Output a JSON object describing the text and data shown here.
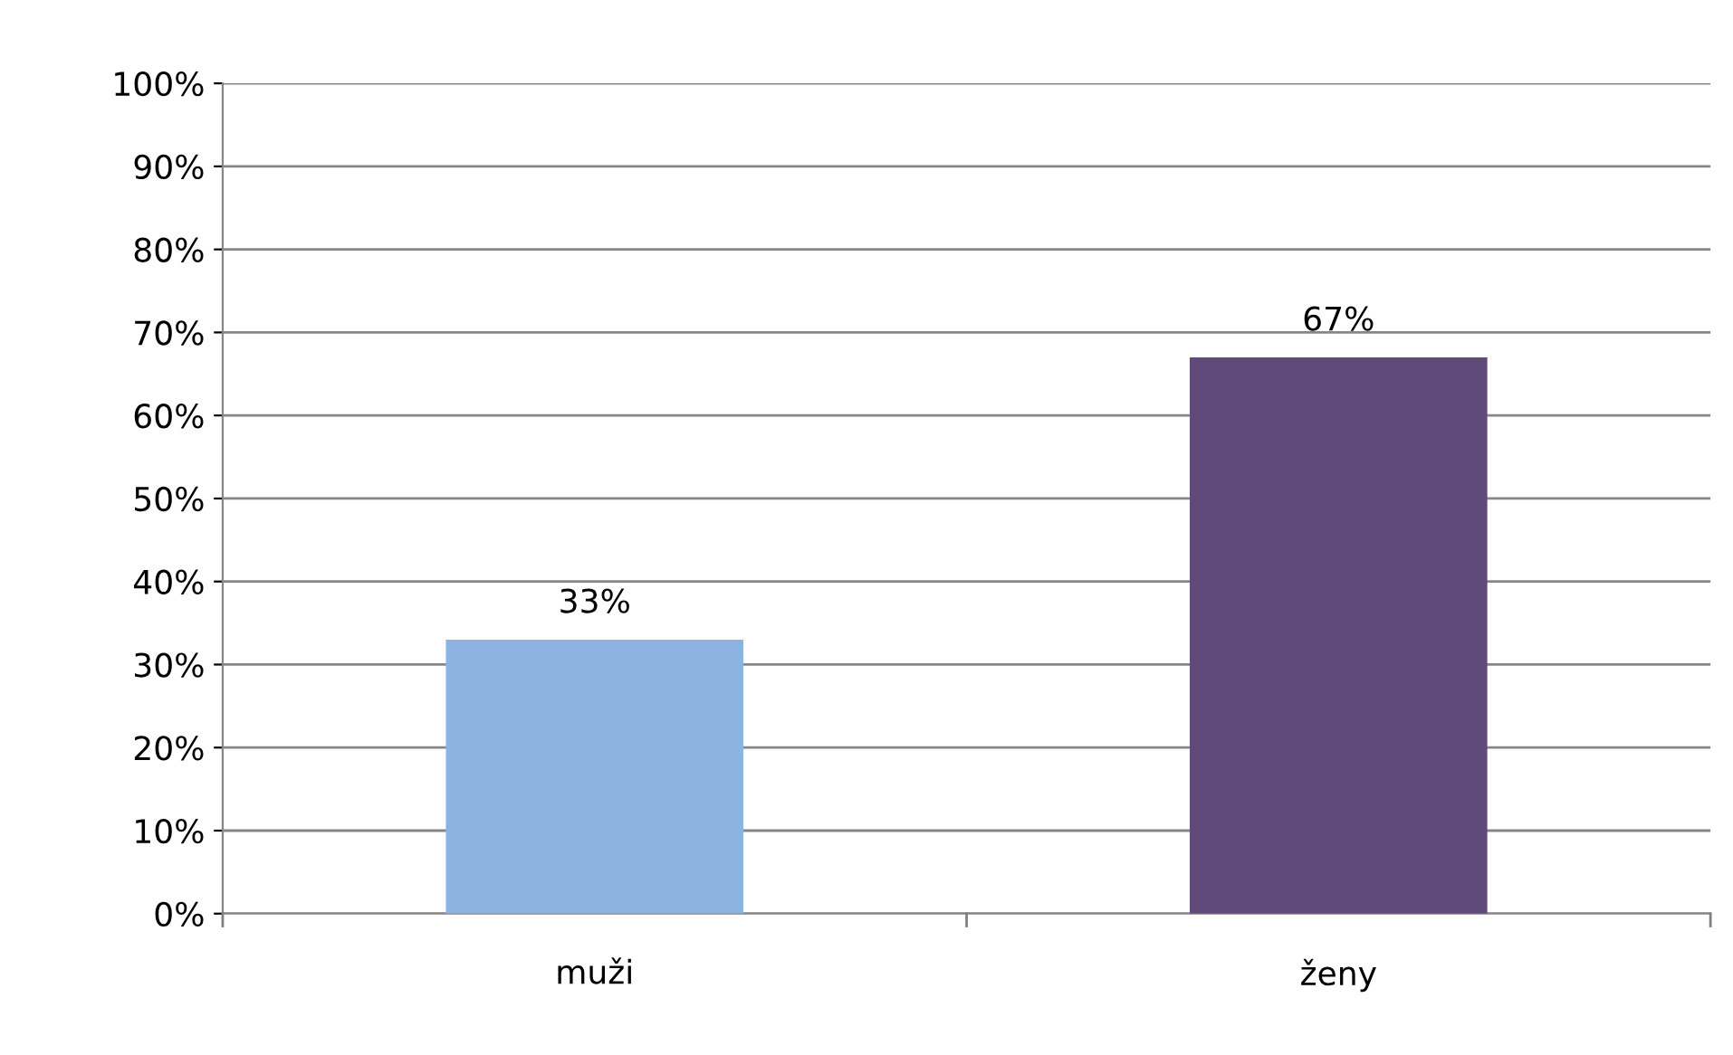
{
  "chart_data": {
    "type": "bar",
    "categories": [
      "muži",
      "ženy"
    ],
    "values": [
      33,
      67
    ],
    "colors": [
      "#8db3e2",
      "#604a7b"
    ],
    "value_labels": [
      "33%",
      "67%"
    ],
    "ylim": [
      0,
      100
    ],
    "yticks": [
      {
        "value": 0,
        "label": "0%"
      },
      {
        "value": 10,
        "label": "10%"
      },
      {
        "value": 20,
        "label": "20%"
      },
      {
        "value": 30,
        "label": "30%"
      },
      {
        "value": 40,
        "label": "40%"
      },
      {
        "value": 50,
        "label": "50%"
      },
      {
        "value": 60,
        "label": "60%"
      },
      {
        "value": 70,
        "label": "70%"
      },
      {
        "value": 80,
        "label": "80%"
      },
      {
        "value": 90,
        "label": "90%"
      },
      {
        "value": 100,
        "label": "100%"
      }
    ],
    "grid": "y",
    "legend": false
  }
}
